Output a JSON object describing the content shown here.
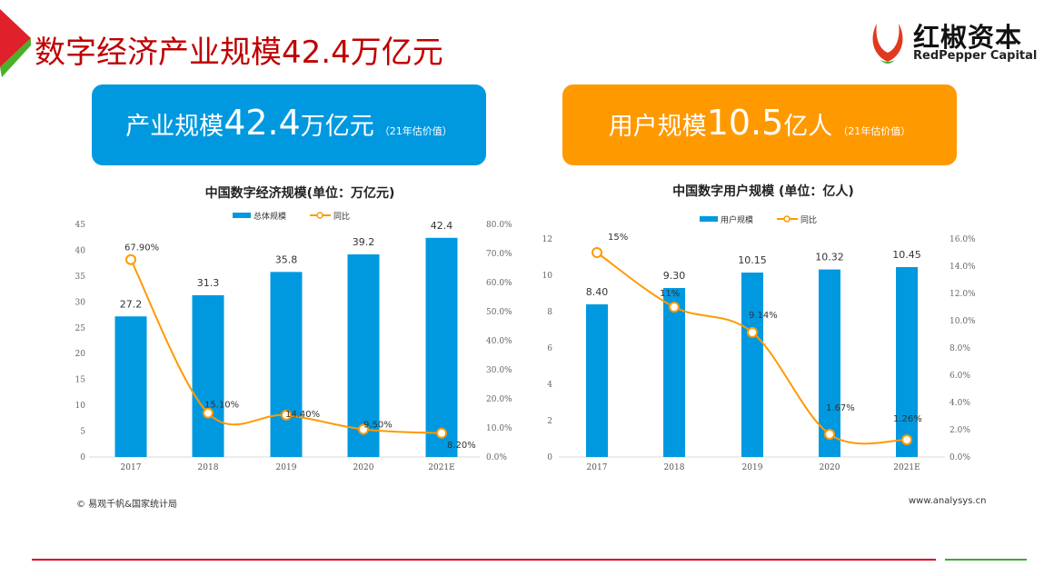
{
  "page_title": "数字经济产业规模42.4万亿元",
  "logo": {
    "cn": "红椒资本",
    "en": "RedPepper Capital"
  },
  "cards": [
    {
      "label": "产业规模",
      "value": "42.4",
      "unit": "万亿元",
      "note": "（21年估价值）",
      "color": "#0099e0"
    },
    {
      "label": "用户规模",
      "value": "10.5",
      "unit": "亿人",
      "note": "（21年估价值）",
      "color": "#ff9900"
    }
  ],
  "chart_data": [
    {
      "type": "bar",
      "title": "中国数字经济规模(单位：万亿元)",
      "categories": [
        "2017",
        "2018",
        "2019",
        "2020",
        "2021E"
      ],
      "series": [
        {
          "name": "总体规模",
          "type": "bar",
          "values": [
            27.2,
            31.3,
            35.8,
            39.2,
            42.4
          ],
          "labels": [
            "27.2",
            "31.3",
            "35.8",
            "39.2",
            "42.4"
          ]
        },
        {
          "name": "同比",
          "type": "line",
          "axis": "right",
          "values": [
            67.9,
            15.1,
            14.4,
            9.5,
            8.2
          ],
          "labels": [
            "67.90%",
            "15.10%",
            "14.40%",
            "9.50%",
            "8.20%"
          ]
        }
      ],
      "ylim": [
        0,
        45
      ],
      "yticks": [
        "0",
        "5",
        "10",
        "15",
        "20",
        "25",
        "30",
        "35",
        "40",
        "45"
      ],
      "y2lim": [
        0,
        80
      ],
      "y2ticks": [
        "0.0%",
        "10.0%",
        "20.0%",
        "30.0%",
        "40.0%",
        "50.0%",
        "60.0%",
        "70.0%",
        "80.0%"
      ],
      "legend": "top-center",
      "grid": false
    },
    {
      "type": "bar",
      "title": "中国数字用户规模 (单位：亿人)",
      "categories": [
        "2017",
        "2018",
        "2019",
        "2020",
        "2021E"
      ],
      "series": [
        {
          "name": "用户规模",
          "type": "bar",
          "values": [
            8.4,
            9.3,
            10.15,
            10.32,
            10.45
          ],
          "labels": [
            "8.40",
            "9.30",
            "10.15",
            "10.32",
            "10.45"
          ]
        },
        {
          "name": "同比",
          "type": "line",
          "axis": "right",
          "values": [
            15,
            11,
            9.14,
            1.67,
            1.26
          ],
          "labels": [
            "15%",
            "11%",
            "9.14%",
            "1.67%",
            "1.26%"
          ]
        }
      ],
      "ylim": [
        0,
        12
      ],
      "yticks": [
        "0",
        "2",
        "4",
        "6",
        "8",
        "10",
        "12"
      ],
      "y2lim": [
        0,
        16
      ],
      "y2ticks": [
        "0.0%",
        "2.0%",
        "4.0%",
        "6.0%",
        "8.0%",
        "10.0%",
        "12.0%",
        "14.0%",
        "16.0%"
      ],
      "legend": "top-center",
      "grid": false
    }
  ],
  "colors": {
    "bar": "#0099e0",
    "line": "#ff9900"
  },
  "footer": {
    "source": "© 易观千帆&国家统计局",
    "site": "www.analysys.cn"
  }
}
